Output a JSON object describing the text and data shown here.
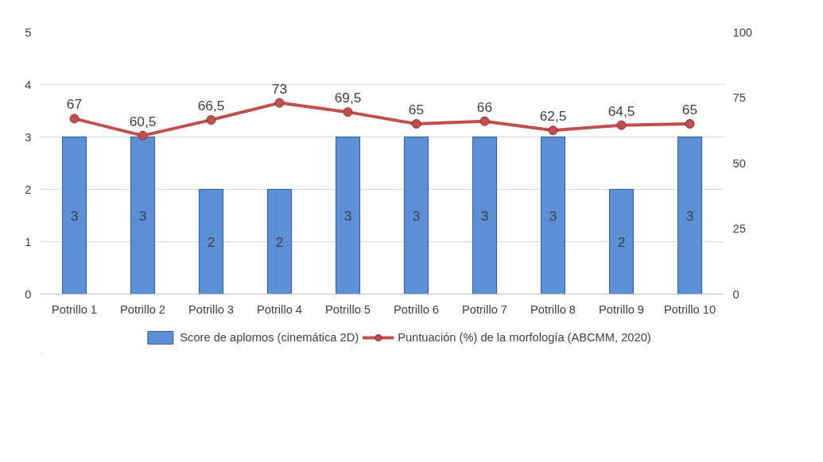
{
  "chart_data": {
    "type": "bar",
    "categories": [
      "Potrillo 1",
      "Potrillo 2",
      "Potrillo 3",
      "Potrillo 4",
      "Potrillo 5",
      "Potrillo 6",
      "Potrillo 7",
      "Potrillo 8",
      "Potrillo 9",
      "Potrillo 10"
    ],
    "series": [
      {
        "name": "Score de aplomos (cinemática 2D)",
        "color": "#5b8fd6",
        "values": [
          3,
          3,
          2,
          2,
          3,
          3,
          3,
          3,
          2,
          3
        ],
        "value_labels": [
          "3",
          "3",
          "2",
          "2",
          "3",
          "3",
          "3",
          "3",
          "2",
          "3"
        ]
      },
      {
        "name": "Puntuación (%) de la morfología (ABCMM, 2020)",
        "type": "line",
        "axis": "y2",
        "color": "#c0504d",
        "marker": "circle",
        "values": [
          67,
          60.5,
          66.5,
          73,
          69.5,
          65,
          66,
          62.5,
          64.5,
          65
        ],
        "value_labels": [
          "67",
          "60,5",
          "66,5",
          "73",
          "69,5",
          "65",
          "66",
          "62,5",
          "64,5",
          "65"
        ]
      }
    ],
    "ylim": [
      0,
      5
    ],
    "yticks": [
      0,
      1,
      2,
      3,
      4,
      5
    ],
    "y2lim": [
      0,
      100
    ],
    "y2ticks": [
      0,
      25,
      50,
      75,
      100
    ],
    "grid": "y",
    "legend": "bottom"
  }
}
